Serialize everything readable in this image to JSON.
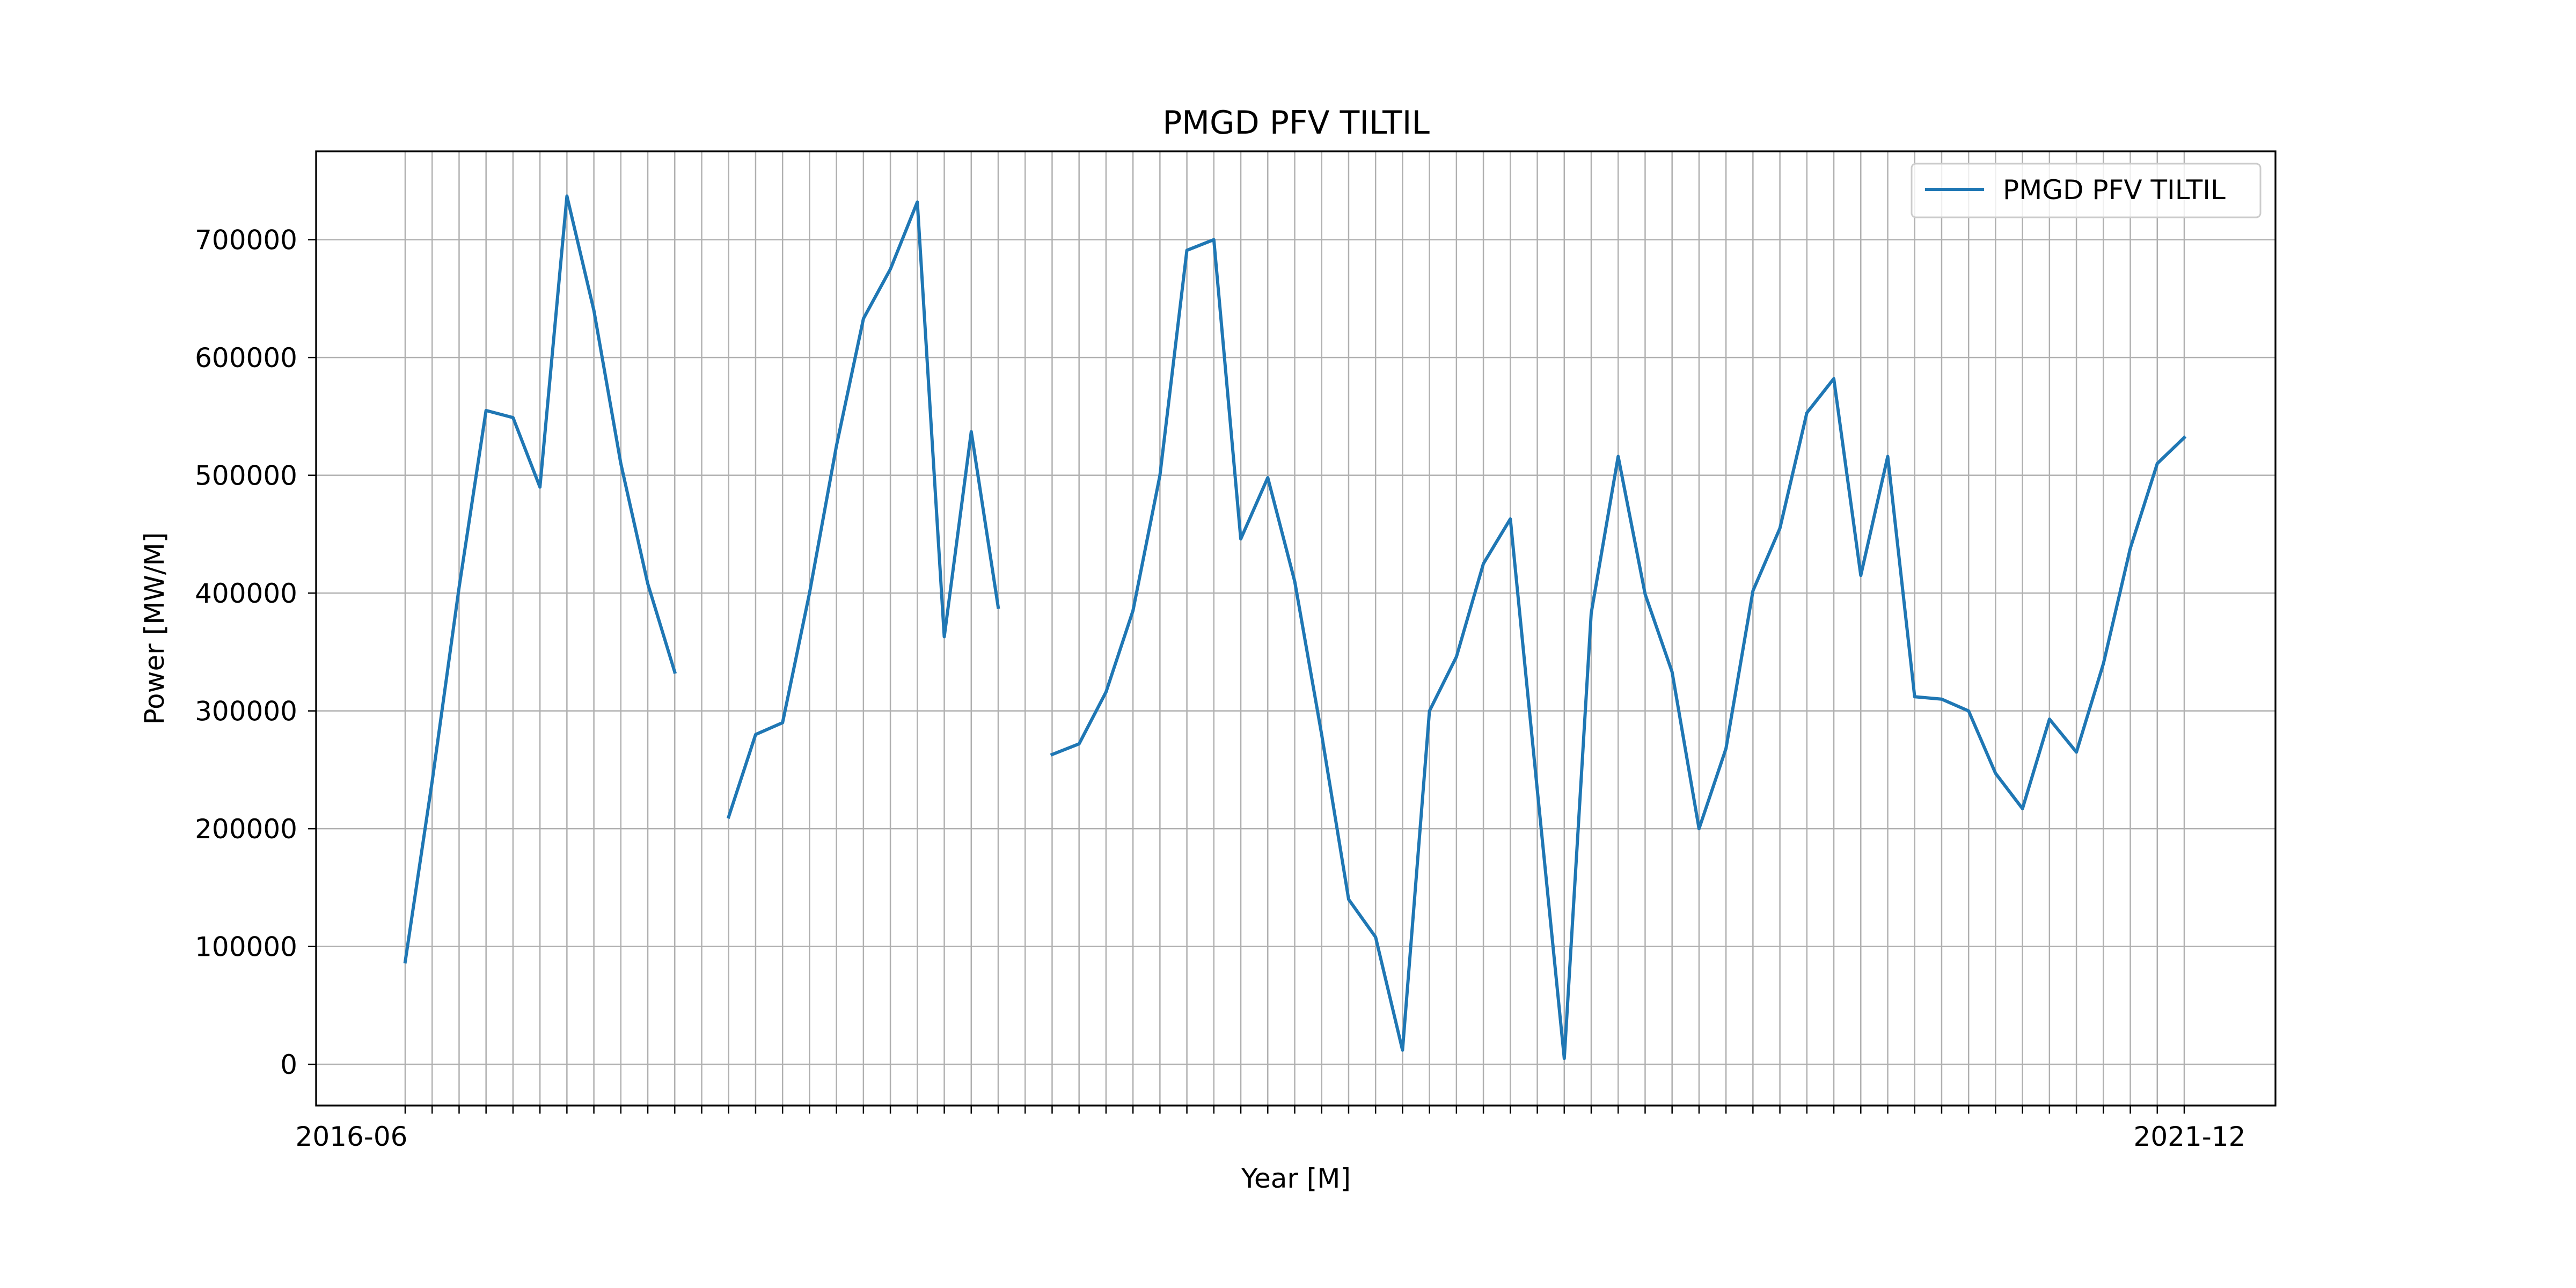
{
  "chart_data": {
    "type": "line",
    "title": "PMGD PFV TILTIL",
    "xlabel": "Year [M]",
    "ylabel": "Power [MW/M]",
    "grid": true,
    "legend_position": "top-right",
    "ylim": [
      -35000,
      775000
    ],
    "yticks": [
      0,
      100000,
      200000,
      300000,
      400000,
      500000,
      600000,
      700000
    ],
    "ytick_labels": [
      "0",
      "100000",
      "200000",
      "300000",
      "400000",
      "500000",
      "600000",
      "700000"
    ],
    "first_xtick_label": "2016-06",
    "last_xtick_label": "2021-12",
    "x": [
      "2016-06",
      "2016-07",
      "2016-08",
      "2016-09",
      "2016-10",
      "2016-11",
      "2016-12",
      "2017-01",
      "2017-02",
      "2017-03",
      "2017-04",
      "2017-05",
      "2017-06",
      "2017-07",
      "2017-08",
      "2017-09",
      "2017-10",
      "2017-11",
      "2017-12",
      "2018-01",
      "2018-02",
      "2018-03",
      "2018-04",
      "2018-05",
      "2018-06",
      "2018-07",
      "2018-08",
      "2018-09",
      "2018-10",
      "2018-11",
      "2018-12",
      "2019-01",
      "2019-02",
      "2019-03",
      "2019-04",
      "2019-05",
      "2019-06",
      "2019-07",
      "2019-08",
      "2019-09",
      "2019-10",
      "2019-11",
      "2019-12",
      "2020-01",
      "2020-02",
      "2020-03",
      "2020-04",
      "2020-05",
      "2020-06",
      "2020-07",
      "2020-08",
      "2020-09",
      "2020-10",
      "2020-11",
      "2020-12",
      "2021-01",
      "2021-02",
      "2021-03",
      "2021-04",
      "2021-05",
      "2021-06",
      "2021-07",
      "2021-08",
      "2021-09",
      "2021-10",
      "2021-11",
      "2021-12"
    ],
    "series": [
      {
        "name": "PMGD PFV TILTIL",
        "color": "#1f77b4",
        "values": [
          87000,
          240000,
          405000,
          555000,
          549000,
          490000,
          737000,
          640000,
          510000,
          408000,
          333000,
          null,
          210000,
          280000,
          290000,
          400000,
          525000,
          633000,
          675000,
          732000,
          363000,
          537000,
          388000,
          null,
          263000,
          272000,
          316000,
          385000,
          500000,
          691000,
          700000,
          446000,
          498000,
          410000,
          280000,
          140000,
          108000,
          12000,
          300000,
          346000,
          425000,
          463000,
          233000,
          5000,
          383000,
          516000,
          399000,
          333000,
          200000,
          268000,
          402000,
          455000,
          553000,
          582000,
          415000,
          516000,
          312000,
          310000,
          300000,
          247000,
          217000,
          293000,
          265000,
          340000,
          438000,
          510000,
          532000
        ]
      }
    ]
  }
}
